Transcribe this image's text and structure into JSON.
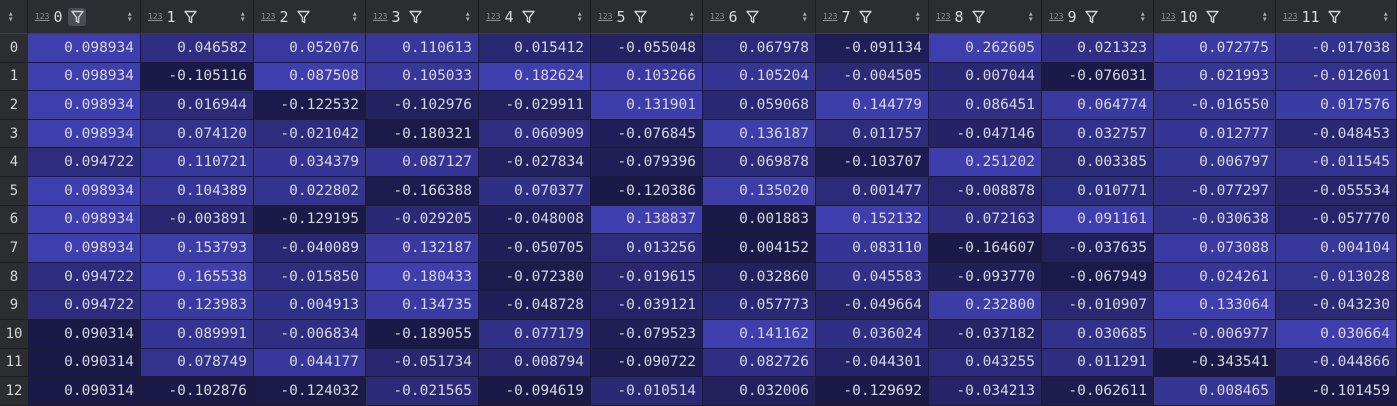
{
  "table": {
    "index_header_icon": "sort-arrows-icon",
    "column_type_icon_text": "123",
    "columns": [
      "0",
      "1",
      "2",
      "3",
      "4",
      "5",
      "6",
      "7",
      "8",
      "9",
      "10",
      "11"
    ],
    "active_filter_column": 0,
    "colors": {
      "header_bg": "#2b2d30",
      "grid_bg": "#1e1f22",
      "heat_low": "#0c0b20",
      "heat_mid": "#2b2a78",
      "heat_high": "#4848c8"
    },
    "rows": [
      {
        "index": "0",
        "values": [
          "0.098934",
          "0.046582",
          "0.052076",
          "0.110613",
          "0.015412",
          "-0.055048",
          "0.067978",
          "-0.091134",
          "0.262605",
          "0.021323",
          "0.072775",
          "-0.017038"
        ]
      },
      {
        "index": "1",
        "values": [
          "0.098934",
          "-0.105116",
          "0.087508",
          "0.105033",
          "0.182624",
          "0.103266",
          "0.105204",
          "-0.004505",
          "0.007044",
          "-0.076031",
          "0.021993",
          "-0.012601"
        ]
      },
      {
        "index": "2",
        "values": [
          "0.098934",
          "0.016944",
          "-0.122532",
          "-0.102976",
          "-0.029911",
          "0.131901",
          "0.059068",
          "0.144779",
          "0.086451",
          "0.064774",
          "-0.016550",
          "0.017576"
        ]
      },
      {
        "index": "3",
        "values": [
          "0.098934",
          "0.074120",
          "-0.021042",
          "-0.180321",
          "0.060909",
          "-0.076845",
          "0.136187",
          "0.011757",
          "-0.047146",
          "0.032757",
          "0.012777",
          "-0.048453"
        ]
      },
      {
        "index": "4",
        "values": [
          "0.094722",
          "0.110721",
          "0.034379",
          "0.087127",
          "-0.027834",
          "-0.079396",
          "0.069878",
          "-0.103707",
          "0.251202",
          "0.003385",
          "0.006797",
          "-0.011545"
        ]
      },
      {
        "index": "5",
        "values": [
          "0.098934",
          "0.104389",
          "0.022802",
          "-0.166388",
          "0.070377",
          "-0.120386",
          "0.135020",
          "0.001477",
          "-0.008878",
          "0.010771",
          "-0.077297",
          "-0.055534"
        ]
      },
      {
        "index": "6",
        "values": [
          "0.098934",
          "-0.003891",
          "-0.129195",
          "-0.029205",
          "-0.048008",
          "0.138837",
          "0.001883",
          "0.152132",
          "0.072163",
          "0.091161",
          "-0.030638",
          "-0.057770"
        ]
      },
      {
        "index": "7",
        "values": [
          "0.098934",
          "0.153793",
          "-0.040089",
          "0.132187",
          "-0.050705",
          "0.013256",
          "0.004152",
          "0.083110",
          "-0.164607",
          "-0.037635",
          "0.073088",
          "0.004104"
        ]
      },
      {
        "index": "8",
        "values": [
          "0.094722",
          "0.165538",
          "-0.015850",
          "0.180433",
          "-0.072380",
          "-0.019615",
          "0.032860",
          "0.045583",
          "-0.093770",
          "-0.067949",
          "0.024261",
          "-0.013028"
        ]
      },
      {
        "index": "9",
        "values": [
          "0.094722",
          "0.123983",
          "0.004913",
          "0.134735",
          "-0.048728",
          "-0.039121",
          "0.057773",
          "-0.049664",
          "0.232800",
          "-0.010907",
          "0.133064",
          "-0.043230"
        ]
      },
      {
        "index": "10",
        "values": [
          "0.090314",
          "0.089991",
          "-0.006834",
          "-0.189055",
          "0.077179",
          "-0.079523",
          "0.141162",
          "0.036024",
          "-0.037182",
          "0.030685",
          "-0.006977",
          "0.030664"
        ]
      },
      {
        "index": "11",
        "values": [
          "0.090314",
          "0.078749",
          "0.044177",
          "-0.051734",
          "0.008794",
          "-0.090722",
          "0.082726",
          "-0.044301",
          "0.043255",
          "0.011291",
          "-0.343541",
          "-0.044866"
        ]
      },
      {
        "index": "12",
        "values": [
          "0.090314",
          "-0.102876",
          "-0.124032",
          "-0.021565",
          "-0.094619",
          "-0.010514",
          "0.032006",
          "-0.129692",
          "-0.034213",
          "-0.062611",
          "0.008465",
          "-0.101459"
        ]
      }
    ]
  }
}
